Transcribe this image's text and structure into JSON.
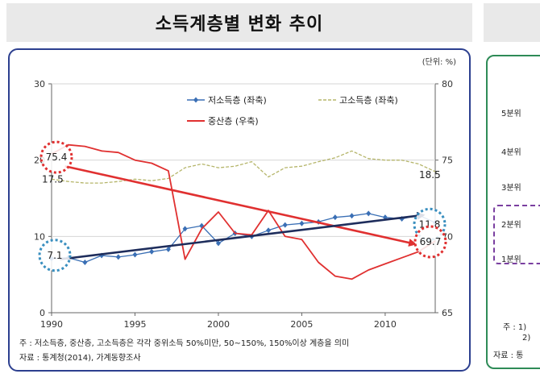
{
  "page": {
    "title": "소득계층별 변화 추이",
    "unit": "(단위: %)",
    "note": "주 : 저소득층, 중산층, 고소득층은 각각 중위소득 50%미만, 50~150%, 150%이상 계층을 의미",
    "source": "자료 : 통계청(2014), 가계동향조사"
  },
  "right_panel": {
    "labels": [
      "5분위",
      "4분위",
      "3분위",
      "2분위",
      "1분위"
    ],
    "note1": "주 : 1)",
    "note2": "2)",
    "source": "자료 : 통"
  },
  "chart_data": {
    "type": "line",
    "x": [
      1990,
      1991,
      1992,
      1993,
      1994,
      1995,
      1996,
      1997,
      1998,
      1999,
      2000,
      2001,
      2002,
      2003,
      2004,
      2005,
      2006,
      2007,
      2008,
      2009,
      2010,
      2011,
      2012,
      2013
    ],
    "x_ticks": [
      1990,
      1995,
      2000,
      2005,
      2010
    ],
    "y_left_ticks": [
      0,
      10,
      20,
      30
    ],
    "y_right_ticks": [
      65,
      70,
      75,
      80
    ],
    "ylim_left": [
      0,
      30
    ],
    "ylim_right": [
      65,
      80
    ],
    "series": [
      {
        "name": "저소득층 (좌축)",
        "axis": "left",
        "color": "#3a6fb5",
        "marker": "diamond",
        "values": [
          7.1,
          7.2,
          6.6,
          7.5,
          7.3,
          7.6,
          8.0,
          8.3,
          11.0,
          11.4,
          9.1,
          10.4,
          10.0,
          10.8,
          11.5,
          11.7,
          11.9,
          12.5,
          12.7,
          13.0,
          12.5,
          12.3,
          12.8,
          11.8
        ]
      },
      {
        "name": "고소득층 (좌축)",
        "axis": "left",
        "color": "#b5b56a",
        "dashed": true,
        "values": [
          17.5,
          17.2,
          17.0,
          17.0,
          17.2,
          17.5,
          17.3,
          17.6,
          19.0,
          19.5,
          19.0,
          19.2,
          19.8,
          17.8,
          19.0,
          19.2,
          19.8,
          20.3,
          21.2,
          20.2,
          20.0,
          20.0,
          19.5,
          18.5
        ]
      },
      {
        "name": "중산층 (우축)",
        "axis": "right",
        "color": "#e03030",
        "values": [
          75.4,
          76.0,
          75.9,
          75.6,
          75.5,
          75.0,
          74.8,
          74.3,
          68.5,
          70.5,
          71.6,
          70.2,
          70.1,
          71.7,
          70.0,
          69.8,
          68.3,
          67.4,
          67.2,
          67.8,
          68.2,
          68.6,
          69.0,
          69.7
        ]
      }
    ],
    "annotations": [
      {
        "text": "75.4",
        "circle_color": "#e03030"
      },
      {
        "text": "17.5"
      },
      {
        "text": "7.1",
        "circle_color": "#3a8fbf"
      },
      {
        "text": "11.8",
        "circle_color": "#3a8fbf"
      },
      {
        "text": "18.5"
      },
      {
        "text": "69.7",
        "circle_color": "#e03030"
      }
    ],
    "trend_arrows": [
      {
        "color": "#e03030",
        "from": {
          "x": 1990.8,
          "y_right": 74.6
        },
        "to": {
          "x": 2011.8,
          "y_right": 69.5
        }
      },
      {
        "color": "#1e2d5c",
        "from": {
          "x": 1990.5,
          "y_left": 7.0
        },
        "to": {
          "x": 2012.3,
          "y_left": 12.8
        }
      }
    ]
  }
}
